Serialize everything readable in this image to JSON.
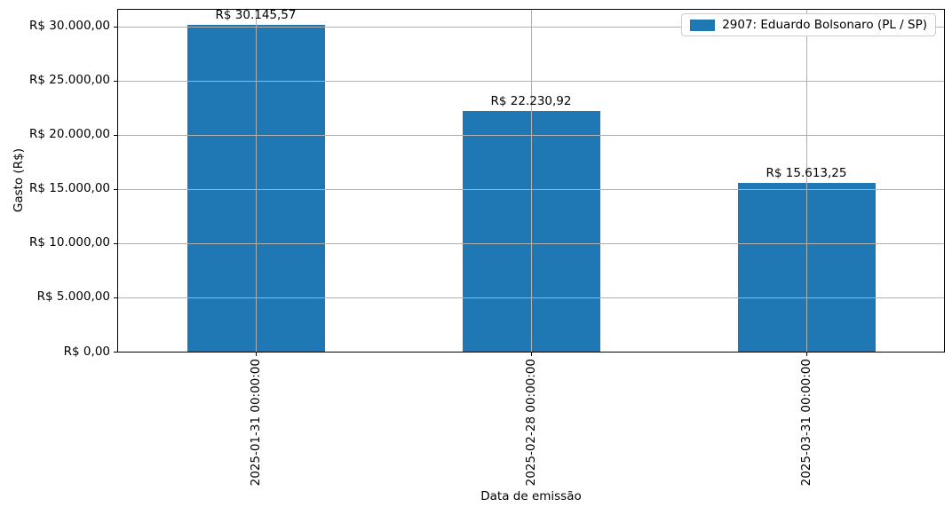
{
  "chart_data": {
    "type": "bar",
    "title": "",
    "xlabel": "Data de emissão",
    "ylabel": "Gasto (R$)",
    "categories": [
      "2025-01-31 00:00:00",
      "2025-02-28 00:00:00",
      "2025-03-31 00:00:00"
    ],
    "series": [
      {
        "name": "2907: Eduardo Bolsonaro (PL / SP)",
        "values": [
          30145.57,
          22230.92,
          15613.25
        ],
        "value_labels": [
          "R$ 30.145,57",
          "R$ 22.230,92",
          "R$ 15.613,25"
        ],
        "color": "#1f77b4"
      }
    ],
    "yticks": [
      {
        "value": 0,
        "label": "R$ 0,00"
      },
      {
        "value": 5000,
        "label": "R$ 5.000,00"
      },
      {
        "value": 10000,
        "label": "R$ 10.000,00"
      },
      {
        "value": 15000,
        "label": "R$ 15.000,00"
      },
      {
        "value": 20000,
        "label": "R$ 20.000,00"
      },
      {
        "value": 25000,
        "label": "R$ 25.000,00"
      },
      {
        "value": 30000,
        "label": "R$ 30.000,00"
      }
    ],
    "ylim": [
      0,
      31557
    ],
    "grid": true,
    "grid_color": "#b0b0b0",
    "axis_color": "#000000",
    "background": "#ffffff",
    "legend_position": "upper right",
    "bar_width_fraction": 0.5
  }
}
